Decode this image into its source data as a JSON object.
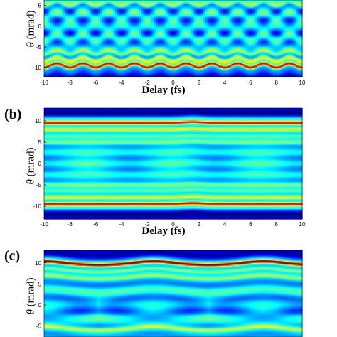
{
  "panels": [
    {
      "label": "",
      "ylabel_symbol": "θ",
      "ylabel_unit": " (mrad)",
      "xlabel": "Delay (fs)"
    },
    {
      "label": "(b)",
      "ylabel_symbol": "θ",
      "ylabel_unit": " (mrad)",
      "xlabel": "Delay (fs)"
    },
    {
      "label": "(c)",
      "ylabel_symbol": "θ",
      "ylabel_unit": " (mrad)",
      "xlabel": ""
    }
  ],
  "chart_data": [
    {
      "type": "heatmap",
      "title": "",
      "xlabel": "Delay (fs)",
      "ylabel": "θ (mrad)",
      "xlim": [
        -10,
        10
      ],
      "ylim_visible": [
        -12,
        6
      ],
      "x_ticks": [
        -10,
        -8,
        -6,
        -4,
        -2,
        0,
        2,
        4,
        6,
        8,
        10
      ],
      "y_ticks": [
        5,
        0,
        -5,
        -10
      ],
      "colormap": "jet",
      "fringe_period_fs": 2,
      "fringe_offset_fs": 1,
      "bright_band_theta": -9.5,
      "wobble_mrad": 0.5
    },
    {
      "type": "heatmap",
      "title": "",
      "xlabel": "Delay (fs)",
      "ylabel": "θ (mrad)",
      "xlim": [
        -10,
        10
      ],
      "ylim": [
        -13,
        13
      ],
      "x_ticks": [
        -10,
        -8,
        -6,
        -4,
        -2,
        0,
        2,
        4,
        6,
        8,
        10
      ],
      "y_ticks": [
        10,
        5,
        0,
        -5,
        -10
      ],
      "colormap": "jet",
      "bright_band_theta": [
        9.5,
        -9.5
      ],
      "bump_center_fs": 1.5,
      "bump_width_fs": 1.0
    },
    {
      "type": "heatmap",
      "title": "",
      "xlabel": "",
      "ylabel": "θ (mrad)",
      "xlim": [
        -10,
        10
      ],
      "ylim_visible": [
        -7,
        13
      ],
      "y_ticks": [
        10,
        5,
        0,
        -5
      ],
      "colormap": "jet",
      "bright_band_theta": 9.5,
      "lobe_centers_fs": [
        -1.5,
        7.0
      ],
      "lobe_period_fs": 8.5,
      "colors": {
        "background": "#0a30b8",
        "peak": "#9a0000"
      }
    }
  ]
}
